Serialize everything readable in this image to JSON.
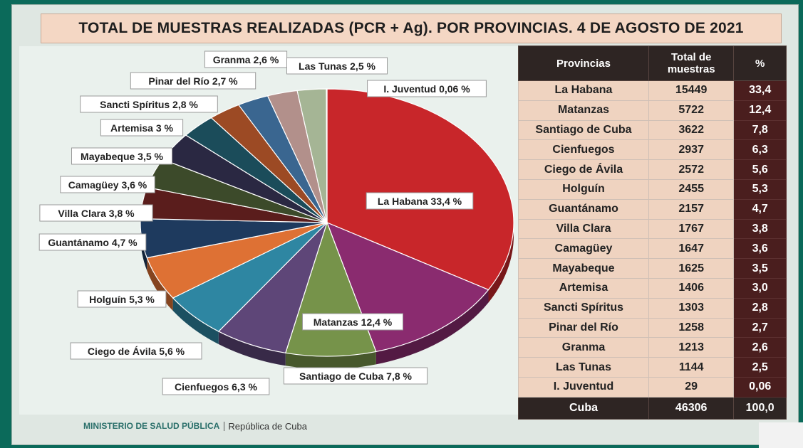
{
  "title": "TOTAL DE MUESTRAS REALIZADAS (PCR + Ag). POR PROVINCIAS. 4 DE AGOSTO DE 2021",
  "footer": {
    "ministry": "MINISTERIO DE SALUD PÚBLICA",
    "republic": "República de Cuba"
  },
  "colors": {
    "title_bg": "#f4d7c4",
    "table_header": "#2e2523",
    "table_body": "#efd3c0",
    "pct_col": "#4a1e1e"
  },
  "chart_data": [
    {
      "type": "pie",
      "slices": [
        {
          "label": "La Habana 33,4 %",
          "value": 33.4,
          "color": "#c8262a"
        },
        {
          "label": "Matanzas 12,4 %",
          "value": 12.4,
          "color": "#8a2b6f"
        },
        {
          "label": "Santiago de Cuba 7,8 %",
          "value": 7.8,
          "color": "#76934a"
        },
        {
          "label": "Cienfuegos 6,3 %",
          "value": 6.3,
          "color": "#5e4678"
        },
        {
          "label": "Ciego de Ávila 5,6 %",
          "value": 5.6,
          "color": "#2e86a2"
        },
        {
          "label": "Holguín 5,3 %",
          "value": 5.3,
          "color": "#de7134"
        },
        {
          "label": "Guantánamo 4,7 %",
          "value": 4.7,
          "color": "#1e3a5e"
        },
        {
          "label": "Villa Clara 3,8 %",
          "value": 3.8,
          "color": "#5a1d1c"
        },
        {
          "label": "Camagüey 3,6 %",
          "value": 3.6,
          "color": "#3c4a2a"
        },
        {
          "label": "Mayabeque 3,5 %",
          "value": 3.5,
          "color": "#2a2842"
        },
        {
          "label": "Artemisa 3 %",
          "value": 3.0,
          "color": "#1b4c5a"
        },
        {
          "label": "Sancti Spíritus 2,8 %",
          "value": 2.8,
          "color": "#9c4a24"
        },
        {
          "label": "Pinar del Río 2,7 %",
          "value": 2.7,
          "color": "#3a6690"
        },
        {
          "label": "Granma 2,6 %",
          "value": 2.6,
          "color": "#b2908b"
        },
        {
          "label": "Las Tunas 2,5 %",
          "value": 2.5,
          "color": "#a5b595"
        },
        {
          "label": "I. Juventud 0,06 %",
          "value": 0.06,
          "color": "#7fa08a"
        }
      ]
    },
    {
      "type": "table",
      "columns": [
        "Provincias",
        "Total de muestras",
        "%"
      ],
      "rows": [
        [
          "La Habana",
          "15449",
          "33,4"
        ],
        [
          "Matanzas",
          "5722",
          "12,4"
        ],
        [
          "Santiago de Cuba",
          "3622",
          "7,8"
        ],
        [
          "Cienfuegos",
          "2937",
          "6,3"
        ],
        [
          "Ciego de Ávila",
          "2572",
          "5,6"
        ],
        [
          "Holguín",
          "2455",
          "5,3"
        ],
        [
          "Guantánamo",
          "2157",
          "4,7"
        ],
        [
          "Villa Clara",
          "1767",
          "3,8"
        ],
        [
          "Camagüey",
          "1647",
          "3,6"
        ],
        [
          "Mayabeque",
          "1625",
          "3,5"
        ],
        [
          "Artemisa",
          "1406",
          "3,0"
        ],
        [
          "Sancti Spíritus",
          "1303",
          "2,8"
        ],
        [
          "Pinar del Río",
          "1258",
          "2,7"
        ],
        [
          "Granma",
          "1213",
          "2,6"
        ],
        [
          "Las Tunas",
          "1144",
          "2,5"
        ],
        [
          "I. Juventud",
          "29",
          "0,06"
        ]
      ],
      "total_row": [
        "Cuba",
        "46306",
        "100,0"
      ]
    }
  ]
}
